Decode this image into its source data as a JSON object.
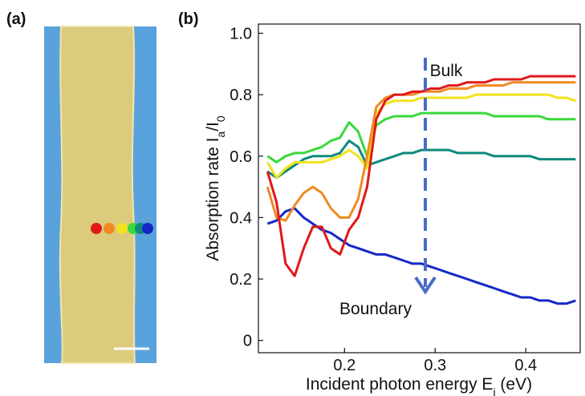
{
  "chart_data": {
    "type": "line",
    "panel_a_label": "(a)",
    "panel_b_label": "(b)",
    "xlabel": [
      "Incident photon energy E",
      "i",
      " (eV)"
    ],
    "ylabel": [
      "Absorption rate I",
      "a",
      "/I",
      "0"
    ],
    "annotations": [
      {
        "text": "Bulk",
        "color": "#e01818"
      },
      {
        "text": "Boundary",
        "color": "#1428c8"
      }
    ],
    "xlim": [
      0.105,
      0.46
    ],
    "ylim": [
      -0.04,
      1.03
    ],
    "xticks": [
      0.2,
      0.3,
      0.4
    ],
    "yticks": [
      0,
      0.2,
      0.4,
      0.6,
      0.8,
      {
        "value": 1,
        "label": "1.0"
      }
    ],
    "x": [
      0.115,
      0.125,
      0.135,
      0.145,
      0.155,
      0.165,
      0.175,
      0.185,
      0.195,
      0.205,
      0.215,
      0.225,
      0.235,
      0.245,
      0.255,
      0.265,
      0.275,
      0.285,
      0.295,
      0.305,
      0.315,
      0.325,
      0.335,
      0.345,
      0.355,
      0.365,
      0.375,
      0.385,
      0.395,
      0.405,
      0.415,
      0.425,
      0.435,
      0.445,
      0.455
    ],
    "series": [
      {
        "color": "#1428c8",
        "values": [
          0.38,
          0.39,
          0.42,
          0.43,
          0.4,
          0.38,
          0.36,
          0.35,
          0.33,
          0.31,
          0.3,
          0.29,
          0.28,
          0.28,
          0.27,
          0.26,
          0.25,
          0.25,
          0.24,
          0.23,
          0.22,
          0.21,
          0.2,
          0.19,
          0.18,
          0.17,
          0.16,
          0.15,
          0.14,
          0.14,
          0.13,
          0.13,
          0.12,
          0.12,
          0.13
        ]
      },
      {
        "color": "#0f8a7a",
        "values": [
          0.55,
          0.53,
          0.55,
          0.57,
          0.59,
          0.6,
          0.6,
          0.6,
          0.61,
          0.65,
          0.63,
          0.57,
          0.58,
          0.59,
          0.6,
          0.61,
          0.61,
          0.62,
          0.62,
          0.62,
          0.62,
          0.61,
          0.61,
          0.61,
          0.61,
          0.6,
          0.6,
          0.6,
          0.6,
          0.6,
          0.59,
          0.59,
          0.59,
          0.59,
          0.59
        ]
      },
      {
        "color": "#3ad83a",
        "values": [
          0.6,
          0.58,
          0.6,
          0.61,
          0.61,
          0.62,
          0.63,
          0.65,
          0.66,
          0.71,
          0.68,
          0.6,
          0.7,
          0.72,
          0.73,
          0.73,
          0.73,
          0.74,
          0.74,
          0.74,
          0.74,
          0.74,
          0.74,
          0.74,
          0.74,
          0.73,
          0.73,
          0.73,
          0.73,
          0.73,
          0.73,
          0.72,
          0.72,
          0.72,
          0.72
        ]
      },
      {
        "color": "#f2e21e",
        "values": [
          0.58,
          0.53,
          0.56,
          0.58,
          0.58,
          0.58,
          0.58,
          0.59,
          0.6,
          0.62,
          0.6,
          0.56,
          0.74,
          0.77,
          0.78,
          0.78,
          0.78,
          0.79,
          0.79,
          0.79,
          0.79,
          0.79,
          0.79,
          0.8,
          0.8,
          0.8,
          0.8,
          0.8,
          0.8,
          0.8,
          0.8,
          0.8,
          0.79,
          0.79,
          0.78
        ]
      },
      {
        "color": "#f08a22",
        "values": [
          0.5,
          0.4,
          0.39,
          0.44,
          0.48,
          0.5,
          0.48,
          0.43,
          0.4,
          0.4,
          0.46,
          0.6,
          0.76,
          0.79,
          0.8,
          0.8,
          0.8,
          0.81,
          0.81,
          0.81,
          0.82,
          0.82,
          0.82,
          0.83,
          0.83,
          0.83,
          0.83,
          0.84,
          0.84,
          0.84,
          0.84,
          0.84,
          0.84,
          0.84,
          0.84
        ]
      },
      {
        "color": "#e01818",
        "values": [
          0.55,
          0.45,
          0.25,
          0.21,
          0.3,
          0.37,
          0.37,
          0.3,
          0.28,
          0.36,
          0.4,
          0.5,
          0.72,
          0.78,
          0.8,
          0.8,
          0.81,
          0.81,
          0.82,
          0.82,
          0.83,
          0.83,
          0.84,
          0.84,
          0.84,
          0.85,
          0.85,
          0.85,
          0.85,
          0.86,
          0.86,
          0.86,
          0.86,
          0.86,
          0.86
        ]
      }
    ]
  }
}
